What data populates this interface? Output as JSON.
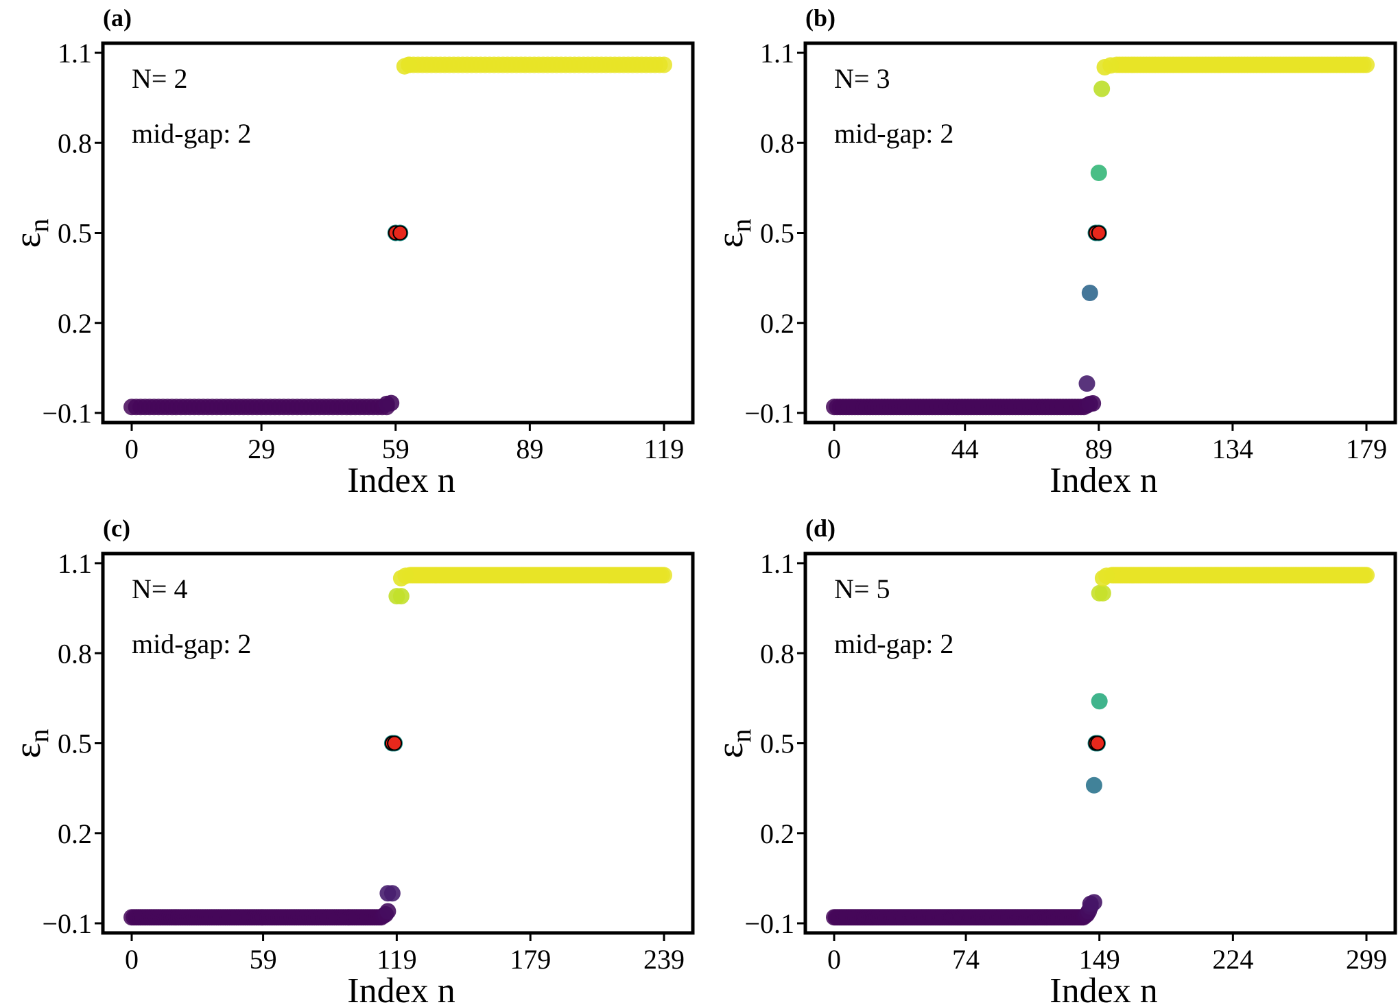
{
  "figure": {
    "panels_layout": "2x2",
    "colormap": "viridis",
    "midgap_marker_color": "#e8281c"
  },
  "chart_data": [
    {
      "type": "scatter",
      "panel_label": "(a)",
      "N_label": "N= 2",
      "midgap_label": "mid-gap: 2",
      "xlabel": "Index n",
      "ylabel": "ε",
      "ylabel_sub": "n",
      "xlim": [
        0,
        119
      ],
      "ylim": [
        -0.1,
        1.1
      ],
      "xticks": [
        0,
        29,
        59,
        89,
        119
      ],
      "xtick_labels": [
        "0",
        "29",
        "59",
        "89",
        "119"
      ],
      "yticks": [
        -0.1,
        0.2,
        0.5,
        0.8,
        1.1
      ],
      "ytick_labels": [
        "−0.1",
        "0.2",
        "0.5",
        "0.8",
        "1.1"
      ],
      "low_band": {
        "from": 0,
        "to": 57,
        "value": -0.08
      },
      "high_band": {
        "from": 62,
        "to": 119,
        "value": 1.06
      },
      "edge_states": [
        {
          "n": 58,
          "value": -0.067
        },
        {
          "n": 57,
          "value": -0.07
        },
        {
          "n": 61,
          "value": 1.055
        },
        {
          "n": 62,
          "value": 1.06
        }
      ],
      "midgap_states": [
        {
          "n": 59,
          "value": 0.5
        },
        {
          "n": 60,
          "value": 0.5
        }
      ]
    },
    {
      "type": "scatter",
      "panel_label": "(b)",
      "N_label": "N= 3",
      "midgap_label": "mid-gap: 2",
      "xlabel": "Index n",
      "ylabel": "ε",
      "ylabel_sub": "n",
      "xlim": [
        0,
        179
      ],
      "ylim": [
        -0.1,
        1.1
      ],
      "xticks": [
        0,
        44,
        89,
        134,
        179
      ],
      "xtick_labels": [
        "0",
        "44",
        "89",
        "134",
        "179"
      ],
      "yticks": [
        -0.1,
        0.2,
        0.5,
        0.8,
        1.1
      ],
      "ytick_labels": [
        "−0.1",
        "0.2",
        "0.5",
        "0.8",
        "1.1"
      ],
      "low_band": {
        "from": 0,
        "to": 84,
        "value": -0.08
      },
      "high_band": {
        "from": 95,
        "to": 179,
        "value": 1.06
      },
      "edge_states": [
        {
          "n": 85,
          "value": -0.075
        },
        {
          "n": 86,
          "value": -0.07
        },
        {
          "n": 87,
          "value": -0.068
        },
        {
          "n": 85,
          "value": -0.002
        },
        {
          "n": 86,
          "value": 0.3
        },
        {
          "n": 89,
          "value": 0.7
        },
        {
          "n": 90,
          "value": 0.98
        },
        {
          "n": 91,
          "value": 1.052
        },
        {
          "n": 93,
          "value": 1.058
        }
      ],
      "midgap_states": [
        {
          "n": 88,
          "value": 0.5
        },
        {
          "n": 89,
          "value": 0.5
        }
      ]
    },
    {
      "type": "scatter",
      "panel_label": "(c)",
      "N_label": "N= 4",
      "midgap_label": "mid-gap: 2",
      "xlabel": "Index n",
      "ylabel": "ε",
      "ylabel_sub": "n",
      "xlim": [
        0,
        239
      ],
      "ylim": [
        -0.1,
        1.1
      ],
      "xticks": [
        0,
        59,
        119,
        179,
        239
      ],
      "xtick_labels": [
        "0",
        "59",
        "119",
        "179",
        "239"
      ],
      "yticks": [
        -0.1,
        0.2,
        0.5,
        0.8,
        1.1
      ],
      "ytick_labels": [
        "−0.1",
        "0.2",
        "0.5",
        "0.8",
        "1.1"
      ],
      "low_band": {
        "from": 0,
        "to": 112,
        "value": -0.08
      },
      "high_band": {
        "from": 125,
        "to": 239,
        "value": 1.06
      },
      "edge_states": [
        {
          "n": 113,
          "value": -0.075
        },
        {
          "n": 114,
          "value": -0.07
        },
        {
          "n": 115,
          "value": -0.06
        },
        {
          "n": 115,
          "value": 0.0
        },
        {
          "n": 117,
          "value": 0.0
        },
        {
          "n": 119,
          "value": 0.99
        },
        {
          "n": 121,
          "value": 0.99
        },
        {
          "n": 121,
          "value": 1.05
        },
        {
          "n": 123,
          "value": 1.058
        }
      ],
      "midgap_states": [
        {
          "n": 117,
          "value": 0.5
        },
        {
          "n": 118,
          "value": 0.5
        }
      ]
    },
    {
      "type": "scatter",
      "panel_label": "(d)",
      "N_label": "N= 5",
      "midgap_label": "mid-gap: 2",
      "xlabel": "Index n",
      "ylabel": "ε",
      "ylabel_sub": "n",
      "xlim": [
        0,
        299
      ],
      "ylim": [
        -0.1,
        1.1
      ],
      "xticks": [
        0,
        74,
        149,
        224,
        299
      ],
      "xtick_labels": [
        "0",
        "74",
        "149",
        "224",
        "299"
      ],
      "yticks": [
        -0.1,
        0.2,
        0.5,
        0.8,
        1.1
      ],
      "ytick_labels": [
        "−0.1",
        "0.2",
        "0.5",
        "0.8",
        "1.1"
      ],
      "low_band": {
        "from": 0,
        "to": 140,
        "value": -0.08
      },
      "high_band": {
        "from": 156,
        "to": 299,
        "value": 1.06
      },
      "edge_states": [
        {
          "n": 141,
          "value": -0.075
        },
        {
          "n": 142,
          "value": -0.07
        },
        {
          "n": 143,
          "value": -0.06
        },
        {
          "n": 144,
          "value": -0.045
        },
        {
          "n": 144,
          "value": -0.035
        },
        {
          "n": 146,
          "value": -0.03
        },
        {
          "n": 146,
          "value": 0.36
        },
        {
          "n": 149,
          "value": 0.64
        },
        {
          "n": 149,
          "value": 1.0
        },
        {
          "n": 151,
          "value": 1.0
        },
        {
          "n": 151,
          "value": 1.05
        },
        {
          "n": 153,
          "value": 1.058
        }
      ],
      "midgap_states": [
        {
          "n": 147,
          "value": 0.5
        },
        {
          "n": 148,
          "value": 0.5
        }
      ]
    }
  ]
}
